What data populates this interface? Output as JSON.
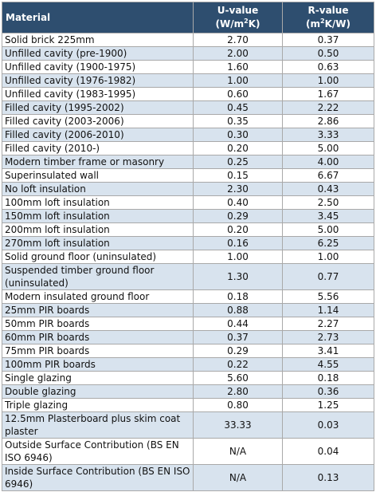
{
  "header": {
    "material": "Material",
    "u_title": "U-value",
    "u_unit_a": "(W/m",
    "u_unit_sup": "2",
    "u_unit_b": "K)",
    "r_title": "R-value",
    "r_unit_a": "(m",
    "r_unit_sup": "2",
    "r_unit_b": "K/W)"
  },
  "rows": [
    {
      "material": "Solid brick 225mm",
      "u": "2.70",
      "r": "0.37"
    },
    {
      "material": "Unfilled cavity (pre-1900)",
      "u": "2.00",
      "r": "0.50"
    },
    {
      "material": "Unfilled cavity (1900-1975)",
      "u": "1.60",
      "r": "0.63"
    },
    {
      "material": "Unfilled cavity (1976-1982)",
      "u": "1.00",
      "r": "1.00"
    },
    {
      "material": "Unfilled cavity (1983-1995)",
      "u": "0.60",
      "r": "1.67"
    },
    {
      "material": "Filled cavity (1995-2002)",
      "u": "0.45",
      "r": "2.22"
    },
    {
      "material": "Filled cavity (2003-2006)",
      "u": "0.35",
      "r": "2.86"
    },
    {
      "material": "Filled cavity (2006-2010)",
      "u": "0.30",
      "r": "3.33"
    },
    {
      "material": "Filled cavity (2010-)",
      "u": "0.20",
      "r": "5.00"
    },
    {
      "material": "Modern timber frame or masonry",
      "u": "0.25",
      "r": "4.00"
    },
    {
      "material": "Superinsulated wall",
      "u": "0.15",
      "r": "6.67"
    },
    {
      "material": "No loft insulation",
      "u": "2.30",
      "r": "0.43"
    },
    {
      "material": "100mm loft insulation",
      "u": "0.40",
      "r": "2.50"
    },
    {
      "material": "150mm loft insulation",
      "u": "0.29",
      "r": "3.45"
    },
    {
      "material": "200mm loft insulation",
      "u": "0.20",
      "r": "5.00"
    },
    {
      "material": "270mm loft insulation",
      "u": "0.16",
      "r": "6.25"
    },
    {
      "material": "Solid ground floor (uninsulated)",
      "u": "1.00",
      "r": "1.00"
    },
    {
      "material": "Suspended timber ground floor (uninsulated)",
      "u": "1.30",
      "r": "0.77"
    },
    {
      "material": "Modern insulated ground floor",
      "u": "0.18",
      "r": "5.56"
    },
    {
      "material": "25mm PIR boards",
      "u": "0.88",
      "r": "1.14"
    },
    {
      "material": "50mm PIR boards",
      "u": "0.44",
      "r": "2.27"
    },
    {
      "material": "60mm PIR boards",
      "u": "0.37",
      "r": "2.73"
    },
    {
      "material": "75mm PIR boards",
      "u": "0.29",
      "r": "3.41"
    },
    {
      "material": "100mm PIR boards",
      "u": "0.22",
      "r": "4.55"
    },
    {
      "material": "Single glazing",
      "u": "5.60",
      "r": "0.18"
    },
    {
      "material": "Double glazing",
      "u": "2.80",
      "r": "0.36"
    },
    {
      "material": "Triple glazing",
      "u": "0.80",
      "r": "1.25"
    },
    {
      "material": "12.5mm Plasterboard plus skim coat plaster",
      "u": "33.33",
      "r": "0.03"
    },
    {
      "material": "Outside Surface Contribution (BS EN ISO 6946)",
      "u": "N/A",
      "r": "0.04"
    },
    {
      "material": "Inside Surface Contribution (BS EN ISO 6946)",
      "u": "N/A",
      "r": "0.13"
    }
  ],
  "colors": {
    "header_bg": "#2e4e6f",
    "stripe": "#d8e3ee",
    "border": "#a9a9a9"
  }
}
